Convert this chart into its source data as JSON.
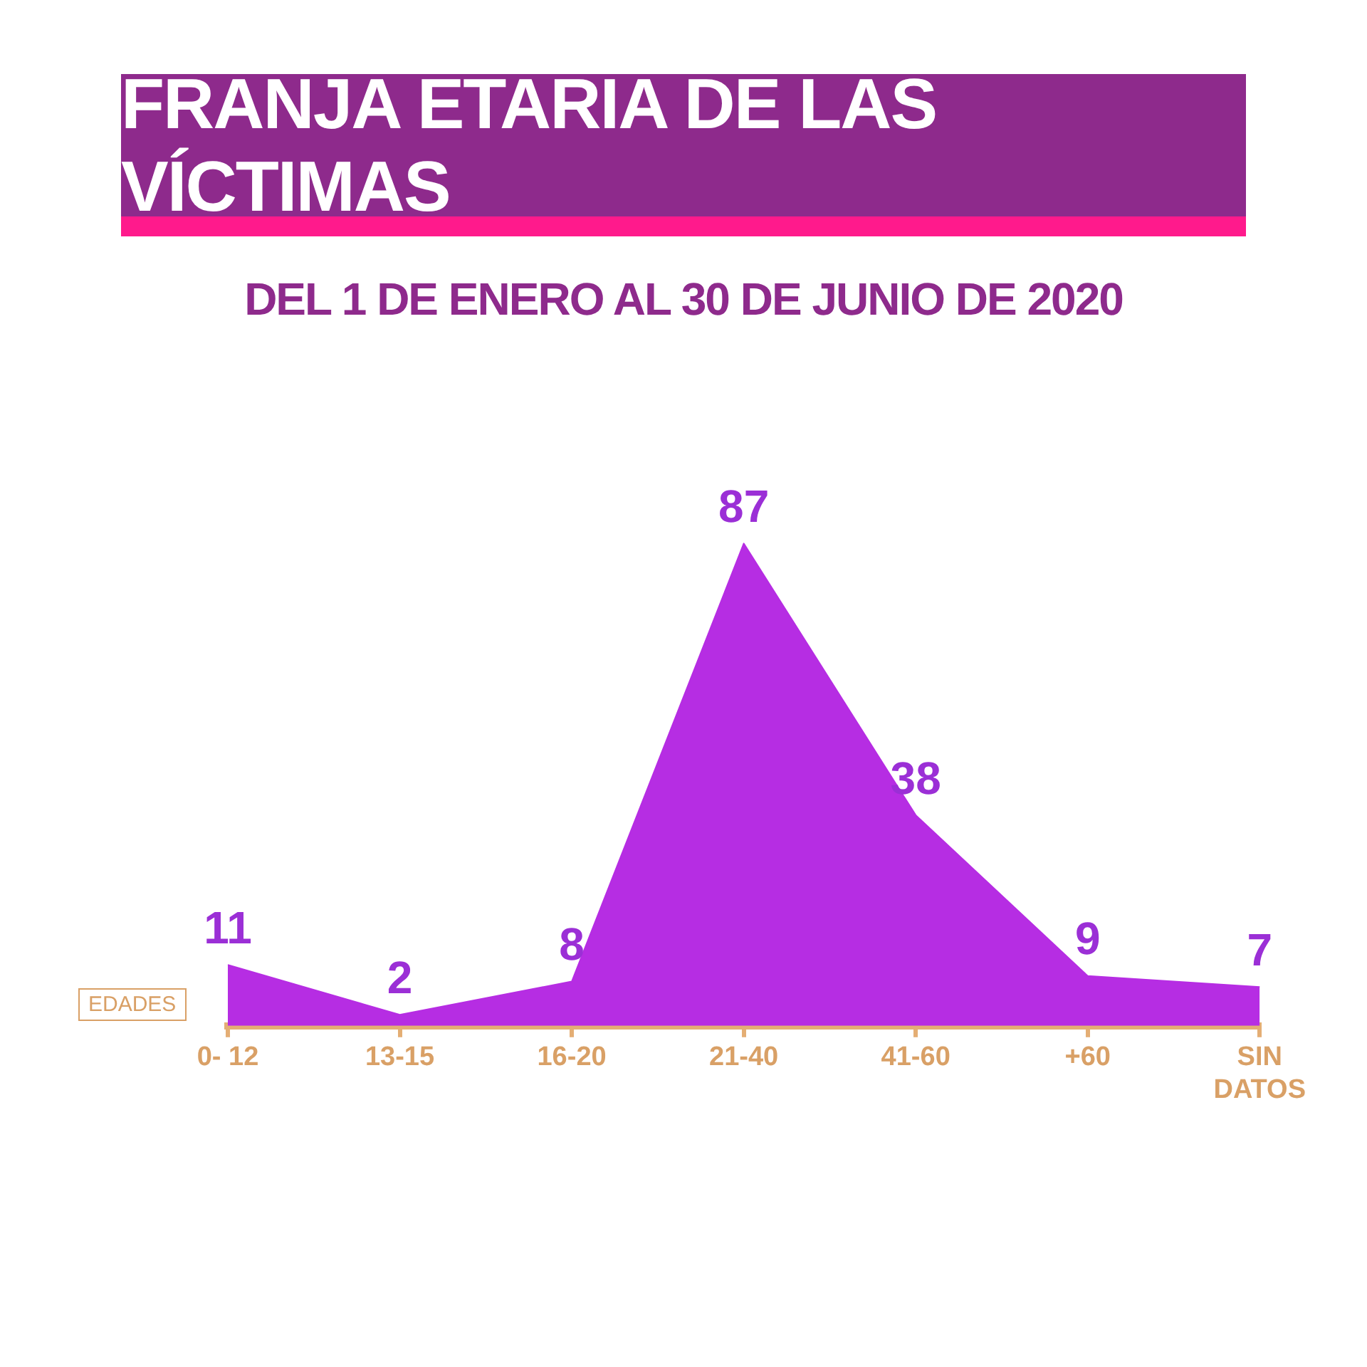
{
  "chart_data": {
    "type": "area",
    "title": "FRANJA ETARIA DE LAS VÍCTIMAS",
    "subtitle": "DEL 1 DE ENERO AL 30 DE JUNIO DE 2020",
    "xlabel": "EDADES",
    "categories": [
      "0- 12",
      "13-15",
      "16-20",
      "21-40",
      "41-60",
      "+60",
      "SIN\nDATOS"
    ],
    "series": [
      {
        "color": "#b62de3",
        "values": [
          11,
          2,
          8,
          87,
          38,
          9,
          7
        ]
      }
    ],
    "data_labels": true,
    "legend": false
  }
}
